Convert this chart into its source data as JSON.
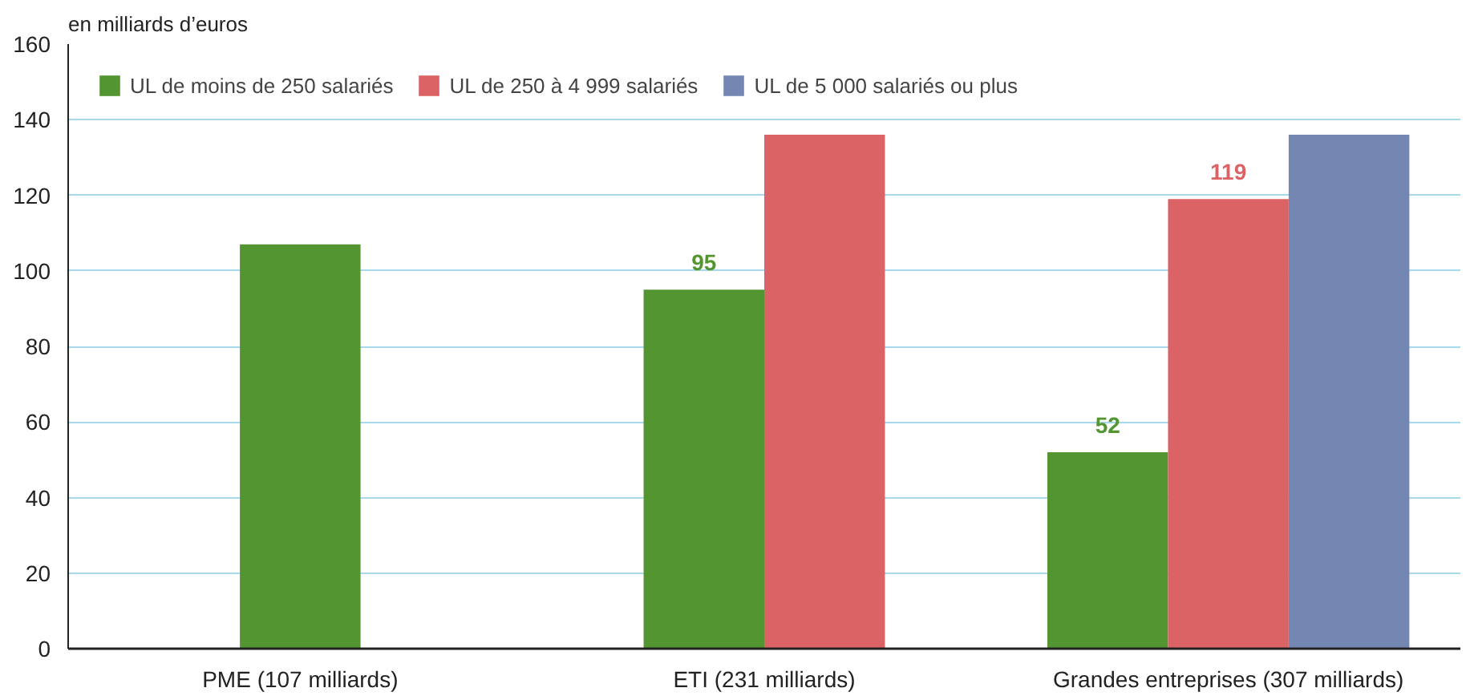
{
  "chart_data": {
    "type": "bar",
    "ylabel": "en milliards d’euros",
    "categories": [
      "PME (107 milliards)",
      "ETI (231 milliards)",
      "Grandes entreprises (307 milliards)"
    ],
    "series": [
      {
        "name": "UL de moins de 250 salariés",
        "color": "#529531",
        "values": [
          107,
          95,
          52
        ],
        "value_labels": [
          null,
          "95",
          "52"
        ]
      },
      {
        "name": "UL de 250 à 4 999 salariés",
        "color": "#dc6365",
        "values": [
          null,
          136,
          119
        ],
        "value_labels": [
          null,
          null,
          "119"
        ]
      },
      {
        "name": "UL de 5 000 salariés ou plus",
        "color": "#7487b3",
        "values": [
          null,
          null,
          136
        ]
      }
    ],
    "ylim": [
      0,
      160
    ],
    "yticks": [
      0,
      20,
      40,
      60,
      80,
      100,
      120,
      140,
      160
    ],
    "grid": "y",
    "legend": "top left"
  }
}
